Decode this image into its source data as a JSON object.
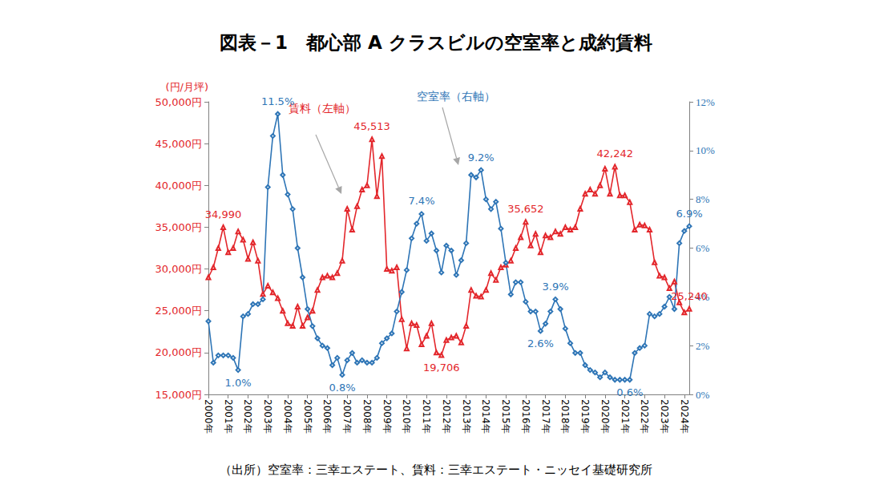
{
  "chart_data": {
    "type": "line",
    "title": "図表－1　都心部 A クラスビルの空室率と成約賃料",
    "source": "（出所）空室率：三幸エステート、賃料：三幸エステート・ニッセイ基礎研究所",
    "ylabel": "(円/月坪)",
    "categories": [
      "2000年",
      null,
      null,
      null,
      "2001年",
      null,
      null,
      null,
      "2002年",
      null,
      null,
      null,
      "2003年",
      null,
      null,
      null,
      "2004年",
      null,
      null,
      null,
      "2005年",
      null,
      null,
      null,
      "2006年",
      null,
      null,
      null,
      "2007年",
      null,
      null,
      null,
      "2008年",
      null,
      null,
      null,
      "2009年",
      null,
      null,
      null,
      "2010年",
      null,
      null,
      null,
      "2011年",
      null,
      null,
      null,
      "2012年",
      null,
      null,
      null,
      "2013年",
      null,
      null,
      null,
      "2014年",
      null,
      null,
      null,
      "2015年",
      null,
      null,
      null,
      "2016年",
      null,
      null,
      null,
      "2017年",
      null,
      null,
      null,
      "2018年",
      null,
      null,
      null,
      "2019年",
      null,
      null,
      null,
      "2020年",
      null,
      null,
      null,
      "2021年",
      null,
      null,
      null,
      "2022年",
      null,
      null,
      null,
      "2023年",
      null,
      null,
      null,
      "2024年",
      null
    ],
    "series": [
      {
        "name": "賃料（左軸）",
        "color": "#e3262b",
        "marker": "triangle",
        "values": [
          29000,
          30200,
          32500,
          34990,
          32000,
          32500,
          34500,
          33500,
          31200,
          33200,
          31000,
          27000,
          28000,
          27200,
          26500,
          25000,
          23500,
          23200,
          25500,
          23200,
          24200,
          25000,
          27500,
          29000,
          29200,
          29000,
          29500,
          31000,
          37200,
          34700,
          37500,
          39500,
          40000,
          45513,
          38700,
          43500,
          30000,
          29800,
          30200,
          24000,
          20500,
          23500,
          23300,
          21000,
          22000,
          23500,
          20000,
          19706,
          21500,
          21800,
          22000,
          21200,
          23200,
          27500,
          26800,
          26700,
          27500,
          29500,
          28700,
          30200,
          30500,
          31000,
          32500,
          33800,
          35652,
          32800,
          34200,
          32000,
          34000,
          33800,
          34500,
          34200,
          35000,
          34700,
          35000,
          37200,
          39000,
          39500,
          39000,
          40000,
          42000,
          39000,
          42242,
          38800,
          38800,
          38000,
          34700,
          35300,
          35200,
          34700,
          30800,
          29200,
          29000,
          27700,
          28500,
          26000,
          24800,
          25240
        ],
        "value_labels": [
          null,
          null,
          null,
          "34,990",
          null,
          null,
          null,
          null,
          null,
          null,
          null,
          null,
          null,
          null,
          null,
          null,
          null,
          null,
          null,
          null,
          null,
          null,
          null,
          null,
          null,
          null,
          null,
          null,
          null,
          null,
          null,
          null,
          null,
          "45,513",
          null,
          null,
          null,
          null,
          null,
          null,
          null,
          null,
          null,
          null,
          null,
          null,
          null,
          "19,706",
          null,
          null,
          null,
          null,
          null,
          null,
          null,
          null,
          null,
          null,
          null,
          null,
          null,
          null,
          null,
          null,
          "35,652",
          null,
          null,
          null,
          null,
          null,
          null,
          null,
          null,
          null,
          null,
          null,
          null,
          null,
          null,
          null,
          null,
          null,
          "42,242",
          null,
          null,
          null,
          null,
          null,
          null,
          null,
          null,
          null,
          null,
          null,
          null,
          null,
          null,
          "25,240"
        ]
      },
      {
        "name": "空室率（右軸）",
        "color": "#2e75b6",
        "marker": "diamond",
        "axis": "y2",
        "values": [
          3.0,
          1.3,
          1.6,
          1.6,
          1.6,
          1.5,
          1.0,
          3.2,
          3.3,
          3.7,
          3.7,
          3.9,
          8.5,
          10.6,
          11.5,
          9.0,
          8.2,
          7.6,
          6.0,
          4.8,
          3.5,
          2.8,
          2.3,
          2.0,
          1.9,
          1.2,
          1.5,
          0.8,
          1.4,
          1.7,
          1.3,
          1.4,
          1.3,
          1.3,
          1.5,
          2.1,
          2.3,
          2.5,
          3.4,
          4.2,
          5.1,
          6.4,
          7.0,
          7.4,
          6.3,
          6.6,
          5.9,
          5.0,
          6.1,
          5.9,
          4.9,
          5.5,
          6.2,
          9.0,
          8.9,
          9.2,
          8.0,
          7.6,
          7.9,
          6.8,
          5.4,
          4.1,
          4.6,
          4.6,
          3.8,
          3.4,
          3.4,
          2.6,
          2.9,
          3.4,
          3.9,
          3.5,
          2.7,
          2.1,
          1.7,
          1.7,
          1.2,
          1.0,
          0.9,
          0.7,
          0.9,
          0.7,
          0.6,
          0.6,
          0.6,
          0.6,
          1.7,
          1.9,
          2.0,
          3.3,
          3.2,
          3.3,
          3.6,
          4.0,
          3.5,
          6.2,
          6.7,
          6.9
        ],
        "value_labels": [
          null,
          null,
          null,
          null,
          null,
          null,
          "1.0%",
          null,
          null,
          null,
          null,
          null,
          null,
          null,
          "11.5%",
          null,
          null,
          null,
          null,
          null,
          null,
          null,
          null,
          null,
          null,
          null,
          null,
          "0.8%",
          null,
          null,
          null,
          null,
          null,
          null,
          null,
          null,
          null,
          null,
          null,
          null,
          null,
          null,
          null,
          "7.4%",
          null,
          null,
          null,
          null,
          null,
          null,
          null,
          null,
          null,
          null,
          null,
          "9.2%",
          null,
          null,
          null,
          null,
          null,
          null,
          null,
          null,
          null,
          null,
          null,
          "2.6%",
          null,
          null,
          "3.9%",
          null,
          null,
          null,
          null,
          null,
          null,
          null,
          null,
          null,
          null,
          null,
          null,
          null,
          null,
          "0.6%",
          null,
          null,
          null,
          null,
          null,
          null,
          null,
          null,
          null,
          null,
          null,
          "6.9%"
        ]
      }
    ],
    "ylim": [
      15000,
      50000
    ],
    "yticks": [
      {
        "value": 15000,
        "label": "15,000円"
      },
      {
        "value": 20000,
        "label": "20,000円"
      },
      {
        "value": 25000,
        "label": "25,000円"
      },
      {
        "value": 30000,
        "label": "30,000円"
      },
      {
        "value": 35000,
        "label": "35,000円"
      },
      {
        "value": 40000,
        "label": "40,000円"
      },
      {
        "value": 45000,
        "label": "45,000円"
      },
      {
        "value": 50000,
        "label": "50,000円"
      }
    ],
    "y2lim": [
      0,
      12
    ],
    "y2ticks": [
      {
        "value": 0,
        "label": "0%"
      },
      {
        "value": 2,
        "label": "2%"
      },
      {
        "value": 4,
        "label": "4%"
      },
      {
        "value": 6,
        "label": "6%"
      },
      {
        "value": 8,
        "label": "8%"
      },
      {
        "value": 10,
        "label": "10%"
      },
      {
        "value": 12,
        "label": "12%"
      }
    ],
    "grid": false
  }
}
